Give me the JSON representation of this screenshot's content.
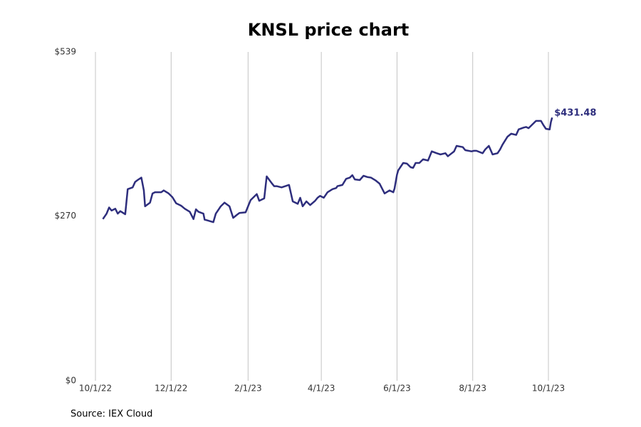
{
  "chart_data": {
    "type": "line",
    "title": "KNSL price chart",
    "source": "Source: IEX Cloud",
    "color": "#2e2e7d",
    "grid": true,
    "x": [
      "2022-10-07",
      "2022-10-10",
      "2022-10-12",
      "2022-10-14",
      "2022-10-17",
      "2022-10-19",
      "2022-10-21",
      "2022-10-25",
      "2022-10-27",
      "2022-10-31",
      "2022-11-02",
      "2022-11-04",
      "2022-11-07",
      "2022-11-09",
      "2022-11-10",
      "2022-11-14",
      "2022-11-16",
      "2022-11-18",
      "2022-11-23",
      "2022-11-25",
      "2022-11-29",
      "2022-12-02",
      "2022-12-05",
      "2022-12-09",
      "2022-12-12",
      "2022-12-16",
      "2022-12-19",
      "2022-12-21",
      "2022-12-23",
      "2022-12-27",
      "2022-12-28",
      "2022-12-30",
      "2023-01-04",
      "2023-01-06",
      "2023-01-10",
      "2023-01-13",
      "2023-01-17",
      "2023-01-20",
      "2023-01-23",
      "2023-01-25",
      "2023-01-30",
      "2023-02-01",
      "2023-02-03",
      "2023-02-08",
      "2023-02-10",
      "2023-02-14",
      "2023-02-16",
      "2023-02-20",
      "2023-02-22",
      "2023-02-24",
      "2023-02-28",
      "2023-03-03",
      "2023-03-06",
      "2023-03-09",
      "2023-03-13",
      "2023-03-15",
      "2023-03-17",
      "2023-03-20",
      "2023-03-23",
      "2023-03-27",
      "2023-03-29",
      "2023-03-31",
      "2023-04-03",
      "2023-04-06",
      "2023-04-10",
      "2023-04-13",
      "2023-04-14",
      "2023-04-18",
      "2023-04-21",
      "2023-04-24",
      "2023-04-26",
      "2023-04-28",
      "2023-05-02",
      "2023-05-05",
      "2023-05-08",
      "2023-05-11",
      "2023-05-15",
      "2023-05-18",
      "2023-05-22",
      "2023-05-26",
      "2023-05-29",
      "2023-05-30",
      "2023-06-01",
      "2023-06-02",
      "2023-06-06",
      "2023-06-09",
      "2023-06-12",
      "2023-06-14",
      "2023-06-16",
      "2023-06-19",
      "2023-06-22",
      "2023-06-26",
      "2023-06-29",
      "2023-07-03",
      "2023-07-06",
      "2023-07-10",
      "2023-07-12",
      "2023-07-17",
      "2023-07-19",
      "2023-07-24",
      "2023-07-26",
      "2023-07-31",
      "2023-08-02",
      "2023-08-04",
      "2023-08-09",
      "2023-08-11",
      "2023-08-14",
      "2023-08-17",
      "2023-08-21",
      "2023-08-23",
      "2023-08-25",
      "2023-08-29",
      "2023-09-01",
      "2023-09-05",
      "2023-09-07",
      "2023-09-11",
      "2023-09-13",
      "2023-09-15",
      "2023-09-18",
      "2023-09-21",
      "2023-09-25",
      "2023-09-27",
      "2023-09-29",
      "2023-10-02",
      "2023-10-03",
      "2023-10-04"
    ],
    "values": [
      265,
      274,
      284,
      279,
      282,
      274,
      278,
      273,
      314,
      317,
      326,
      329,
      333,
      312,
      286,
      292,
      307,
      309,
      309,
      312,
      307,
      301,
      291,
      287,
      282,
      277,
      265,
      281,
      277,
      274,
      264,
      263,
      260,
      274,
      286,
      292,
      286,
      267,
      272,
      275,
      276,
      286,
      296,
      306,
      295,
      299,
      335,
      324,
      319,
      319,
      317,
      319,
      321,
      294,
      290,
      300,
      286,
      294,
      288,
      295,
      300,
      303,
      300,
      309,
      314,
      316,
      319,
      321,
      331,
      333,
      337,
      330,
      329,
      336,
      334,
      333,
      328,
      323,
      307,
      312,
      309,
      315,
      338,
      345,
      357,
      356,
      350,
      349,
      357,
      357,
      363,
      361,
      376,
      373,
      371,
      373,
      368,
      376,
      385,
      383,
      378,
      376,
      377,
      377,
      373,
      379,
      385,
      371,
      373,
      379,
      387,
      400,
      405,
      403,
      412,
      415,
      416,
      414,
      420,
      426,
      426,
      419,
      413,
      412,
      424,
      431.48
    ],
    "annotations": [
      {
        "text": "$431.48",
        "x": "2023-10-04",
        "y": 431.48
      }
    ],
    "xlim": [
      "2022-10-01",
      "2023-10-01"
    ],
    "xticks": [
      {
        "value": "2022-10-01",
        "label": "10/1/22"
      },
      {
        "value": "2022-12-01",
        "label": "12/1/22"
      },
      {
        "value": "2023-02-01",
        "label": "2/1/23"
      },
      {
        "value": "2023-04-01",
        "label": "4/1/23"
      },
      {
        "value": "2023-06-01",
        "label": "6/1/23"
      },
      {
        "value": "2023-08-01",
        "label": "8/1/23"
      },
      {
        "value": "2023-10-01",
        "label": "10/1/23"
      }
    ],
    "ylim": [
      0,
      539
    ],
    "yticks": [
      {
        "value": 0,
        "label": "$0"
      },
      {
        "value": 270,
        "label": "$270"
      },
      {
        "value": 539,
        "label": "$539"
      }
    ]
  }
}
